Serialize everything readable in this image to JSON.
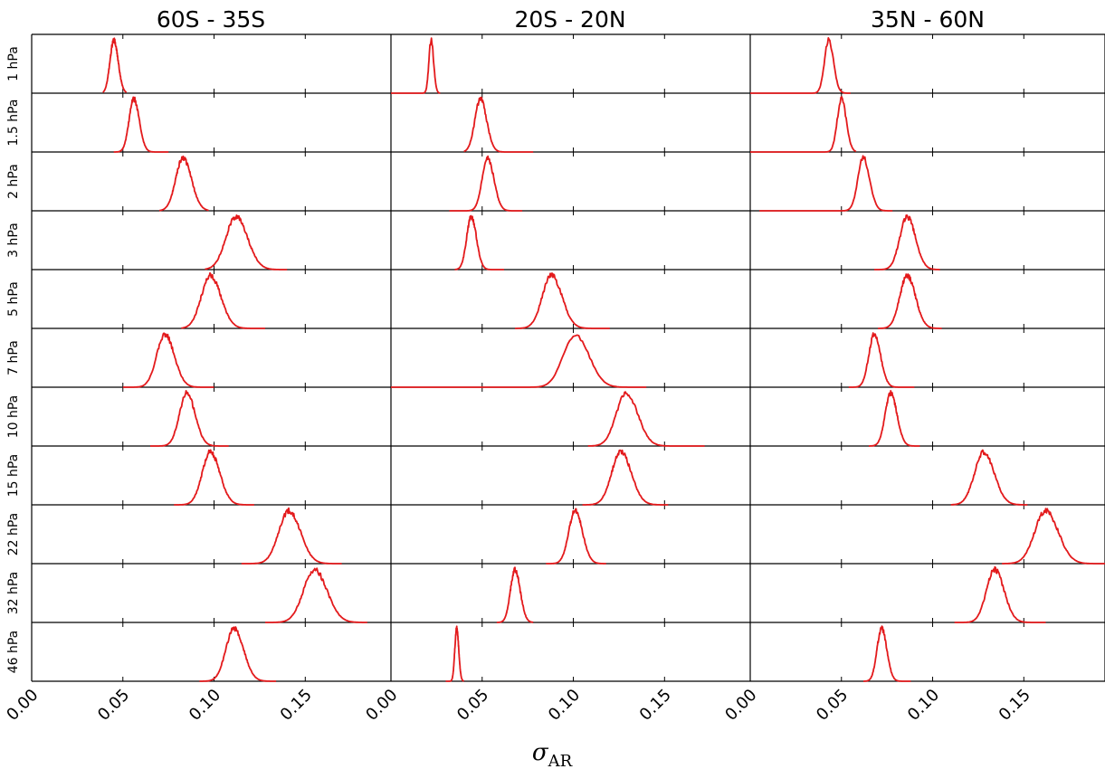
{
  "chart_data": {
    "type": "line",
    "xlabel": "σ",
    "xlabel_subscript": "AR",
    "xticks": [
      "0.00",
      "0.05",
      "0.10",
      "0.15"
    ],
    "xlim": [
      0,
      0.195
    ],
    "line_color": "#e31a1c",
    "columns": [
      "60S - 35S",
      "20S - 20N",
      "35N - 60N"
    ],
    "rows": [
      "1 hPa",
      "1.5 hPa",
      "2 hPa",
      "3 hPa",
      "5 hPa",
      "7 hPa",
      "10 hPa",
      "15 hPa",
      "22 hPa",
      "32 hPa",
      "46 hPa"
    ],
    "distributions": [
      [
        {
          "mean": 0.045,
          "sd": 0.0021,
          "lo": 0.039,
          "hi": 0.052
        },
        {
          "mean": 0.056,
          "sd": 0.0026,
          "lo": 0.045,
          "hi": 0.075
        },
        {
          "mean": 0.083,
          "sd": 0.004,
          "lo": 0.07,
          "hi": 0.097
        },
        {
          "mean": 0.112,
          "sd": 0.0055,
          "lo": 0.095,
          "hi": 0.14
        },
        {
          "mean": 0.098,
          "sd": 0.005,
          "lo": 0.082,
          "hi": 0.128
        },
        {
          "mean": 0.073,
          "sd": 0.0045,
          "lo": 0.05,
          "hi": 0.1
        },
        {
          "mean": 0.085,
          "sd": 0.004,
          "lo": 0.065,
          "hi": 0.108
        },
        {
          "mean": 0.098,
          "sd": 0.0045,
          "lo": 0.078,
          "hi": 0.122
        },
        {
          "mean": 0.141,
          "sd": 0.0055,
          "lo": 0.115,
          "hi": 0.17
        },
        {
          "mean": 0.155,
          "sd": 0.006,
          "lo": 0.128,
          "hi": 0.184
        },
        {
          "mean": 0.111,
          "sd": 0.0045,
          "lo": 0.092,
          "hi": 0.134
        }
      ],
      [
        {
          "mean": 0.022,
          "sd": 0.0012,
          "lo": 0.0,
          "hi": 0.027
        },
        {
          "mean": 0.049,
          "sd": 0.003,
          "lo": 0.04,
          "hi": 0.078
        },
        {
          "mean": 0.053,
          "sd": 0.003,
          "lo": 0.032,
          "hi": 0.072
        },
        {
          "mean": 0.044,
          "sd": 0.0025,
          "lo": 0.035,
          "hi": 0.062
        },
        {
          "mean": 0.088,
          "sd": 0.005,
          "lo": 0.068,
          "hi": 0.12
        },
        {
          "mean": 0.101,
          "sd": 0.0065,
          "lo": 0.0,
          "hi": 0.14
        },
        {
          "mean": 0.129,
          "sd": 0.0055,
          "lo": 0.108,
          "hi": 0.172
        },
        {
          "mean": 0.126,
          "sd": 0.005,
          "lo": 0.105,
          "hi": 0.152
        },
        {
          "mean": 0.101,
          "sd": 0.0035,
          "lo": 0.085,
          "hi": 0.118
        },
        {
          "mean": 0.068,
          "sd": 0.0025,
          "lo": 0.058,
          "hi": 0.078
        },
        {
          "mean": 0.036,
          "sd": 0.001,
          "lo": 0.03,
          "hi": 0.04
        }
      ],
      [
        {
          "mean": 0.043,
          "sd": 0.0023,
          "lo": 0.0,
          "hi": 0.055
        },
        {
          "mean": 0.05,
          "sd": 0.0023,
          "lo": 0.0,
          "hi": 0.058
        },
        {
          "mean": 0.062,
          "sd": 0.003,
          "lo": 0.005,
          "hi": 0.078
        },
        {
          "mean": 0.086,
          "sd": 0.004,
          "lo": 0.068,
          "hi": 0.104
        },
        {
          "mean": 0.086,
          "sd": 0.004,
          "lo": 0.07,
          "hi": 0.105
        },
        {
          "mean": 0.068,
          "sd": 0.003,
          "lo": 0.054,
          "hi": 0.09
        },
        {
          "mean": 0.077,
          "sd": 0.003,
          "lo": 0.065,
          "hi": 0.093
        },
        {
          "mean": 0.128,
          "sd": 0.005,
          "lo": 0.11,
          "hi": 0.152
        },
        {
          "mean": 0.162,
          "sd": 0.006,
          "lo": 0.138,
          "hi": 0.195
        },
        {
          "mean": 0.134,
          "sd": 0.0045,
          "lo": 0.112,
          "hi": 0.162
        },
        {
          "mean": 0.072,
          "sd": 0.0025,
          "lo": 0.062,
          "hi": 0.088
        }
      ]
    ]
  }
}
